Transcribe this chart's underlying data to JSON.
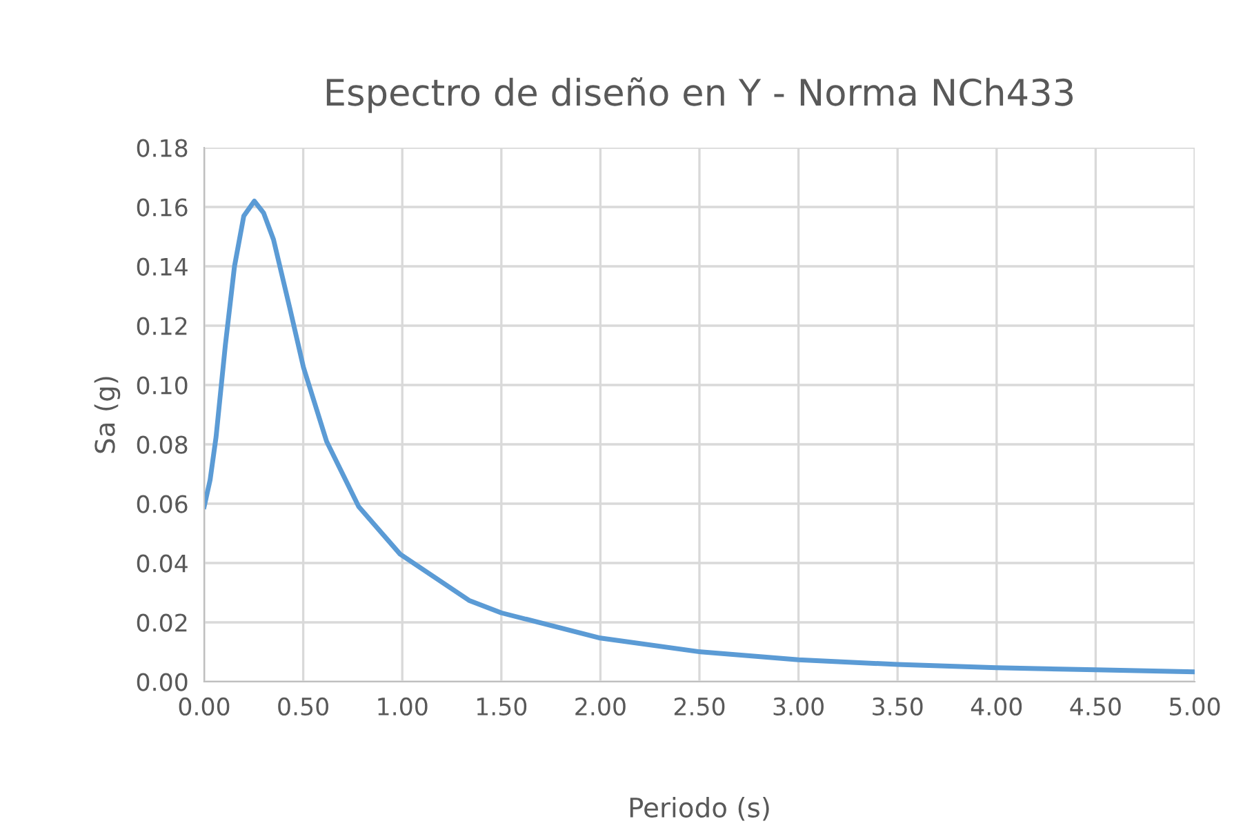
{
  "chart_data": {
    "type": "line",
    "title": "Espectro de diseño en Y - Norma NCh433",
    "xlabel": "Periodo (s)",
    "ylabel": "Sa (g)",
    "x": [
      0,
      0.03,
      0.06,
      0.107,
      0.153,
      0.2,
      0.253,
      0.3,
      0.35,
      0.432,
      0.501,
      0.618,
      0.78,
      0.989,
      1.337,
      1.5,
      2.0,
      2.5,
      3.0,
      3.5,
      4.0,
      4.5,
      5.0
    ],
    "series": [
      {
        "color": "#5b9bd5",
        "values": [
          0.059,
          0.068,
          0.0825,
          0.1135,
          0.14,
          0.157,
          0.162,
          0.158,
          0.149,
          0.126,
          0.106,
          0.081,
          0.059,
          0.043,
          0.0274,
          0.0232,
          0.0147,
          0.0101,
          0.0074,
          0.0058,
          0.0047,
          0.004,
          0.0033
        ]
      }
    ],
    "xlim": [
      0,
      5
    ],
    "xticks": [
      {
        "value": 0,
        "label": "0.00"
      },
      {
        "value": 0.5,
        "label": "0.50"
      },
      {
        "value": 1,
        "label": "1.00"
      },
      {
        "value": 1.5,
        "label": "1.50"
      },
      {
        "value": 2,
        "label": "2.00"
      },
      {
        "value": 2.5,
        "label": "2.50"
      },
      {
        "value": 3,
        "label": "3.00"
      },
      {
        "value": 3.5,
        "label": "3.50"
      },
      {
        "value": 4,
        "label": "4.00"
      },
      {
        "value": 4.5,
        "label": "4.50"
      },
      {
        "value": 5,
        "label": "5.00"
      }
    ],
    "ylim": [
      0,
      0.18
    ],
    "yticks": [
      {
        "value": 0,
        "label": "0.00"
      },
      {
        "value": 0.02,
        "label": "0.02"
      },
      {
        "value": 0.04,
        "label": "0.04"
      },
      {
        "value": 0.06,
        "label": "0.06"
      },
      {
        "value": 0.08,
        "label": "0.08"
      },
      {
        "value": 0.1,
        "label": "0.10"
      },
      {
        "value": 0.12,
        "label": "0.12"
      },
      {
        "value": 0.14,
        "label": "0.14"
      },
      {
        "value": 0.16,
        "label": "0.16"
      },
      {
        "value": 0.18,
        "label": "0.18"
      }
    ],
    "grid": true,
    "legend": false,
    "marker": "none",
    "line_style": "solid"
  }
}
